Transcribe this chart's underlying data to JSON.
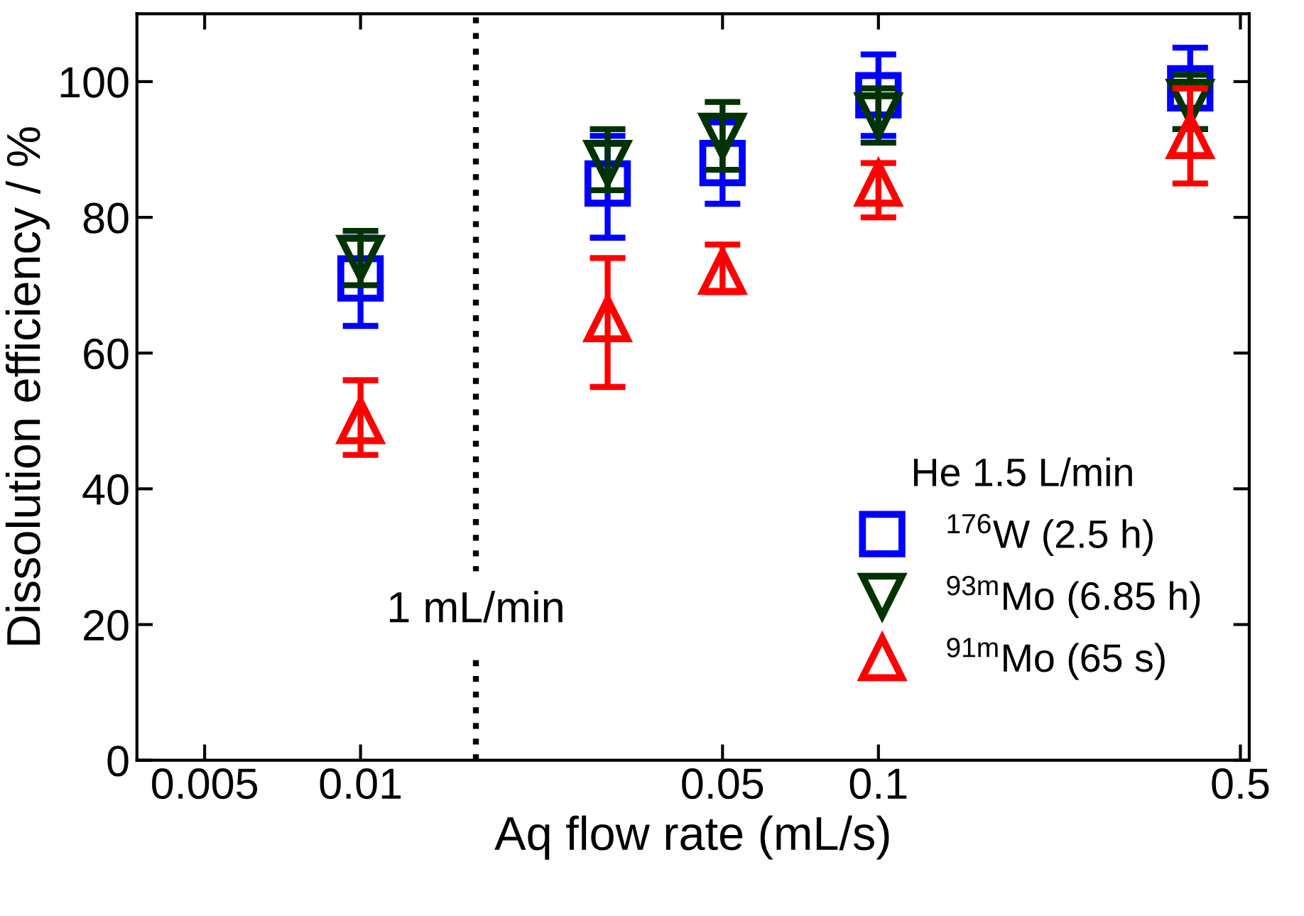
{
  "chart_data": {
    "type": "scatter",
    "xlabel": "Aq flow rate (mL/s)",
    "ylabel": "Dissolution efficiency / %",
    "legend_title": "He 1.5 L/min",
    "legend": "bottom right",
    "log": "x",
    "grid": false,
    "xlim": [
      0.0037,
      0.52
    ],
    "xticks": [
      0.005,
      0.01,
      0.05,
      0.1,
      0.5
    ],
    "ylim": [
      0,
      110
    ],
    "yticks": [
      0,
      20,
      40,
      60,
      80,
      100
    ],
    "x": [
      0.01,
      0.03,
      0.05,
      0.1,
      0.4
    ],
    "series": [
      {
        "name": "$^{176}$W (2.5 h)",
        "color": "#0000ff",
        "marker": "square",
        "values": [
          71,
          85,
          88,
          98,
          99
        ],
        "errors": [
          [
            64,
            77
          ],
          [
            77,
            92
          ],
          [
            82,
            94
          ],
          [
            92,
            104
          ],
          [
            93,
            105
          ]
        ]
      },
      {
        "name": "$^{93m}$Mo (6.85 h)",
        "color": "#003300",
        "marker": "triangle_down",
        "values": [
          74,
          88,
          92,
          95,
          97
        ],
        "errors": [
          [
            70,
            78
          ],
          [
            84,
            93
          ],
          [
            87,
            97
          ],
          [
            91,
            99
          ],
          [
            93,
            101
          ]
        ]
      },
      {
        "name": "$^{91m}$Mo (65 s)",
        "color": "#ff0000",
        "marker": "triangle",
        "values": [
          50,
          65,
          72,
          85,
          92
        ],
        "errors": [
          [
            45,
            56
          ],
          [
            55,
            74
          ],
          [
            69,
            76
          ],
          [
            80,
            88
          ],
          [
            85,
            99
          ]
        ]
      }
    ],
    "ref_lines": [
      {
        "axis": "x",
        "value": 0.0167,
        "label": "1 mL/min",
        "color": "#000000",
        "line_style": "dotted"
      }
    ]
  }
}
